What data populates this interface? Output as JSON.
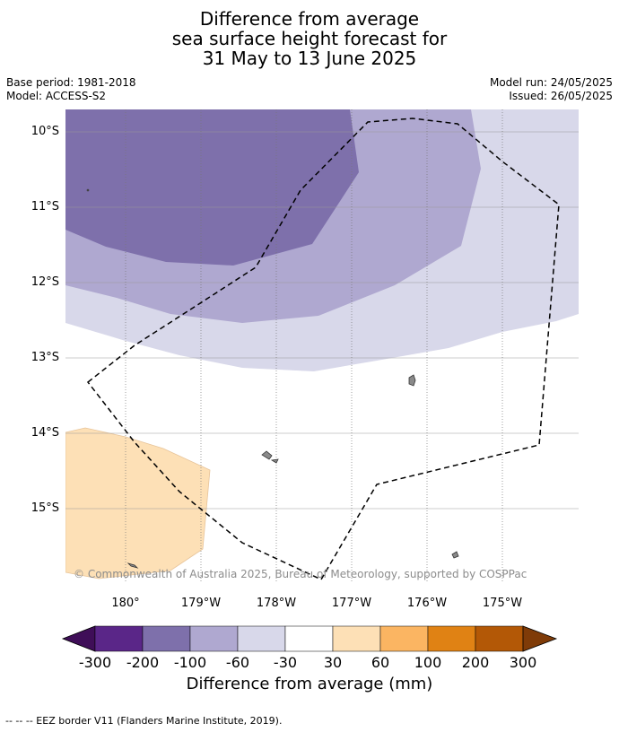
{
  "title": {
    "line1": "Difference from average",
    "line2": "sea surface height forecast for",
    "line3": "31 May to 13 June 2025"
  },
  "meta": {
    "base_period": "Base period: 1981-2018",
    "model": "Model: ACCESS-S2",
    "model_run": "Model run: 24/05/2025",
    "issued": "Issued: 26/05/2025"
  },
  "map": {
    "lat_labels": [
      "10°S",
      "11°S",
      "12°S",
      "13°S",
      "14°S",
      "15°S"
    ],
    "lon_labels": [
      "180°",
      "179°W",
      "178°W",
      "177°W",
      "176°W",
      "175°W"
    ],
    "copyright": "© Commonwealth of Australia 2025, Bureau of Meteorology, supported by COSPPac"
  },
  "colorbar": {
    "labels": [
      "-300",
      "-200",
      "-100",
      "-60",
      "-30",
      "30",
      "60",
      "100",
      "200",
      "300"
    ],
    "colors": [
      "#3f0e58",
      "#5a2688",
      "#7e70ab",
      "#afa8d0",
      "#d8d8ea",
      "#ffffff",
      "#fde0b6",
      "#fbb562",
      "#e08214",
      "#b35806",
      "#7f3b08"
    ],
    "title": "Difference from average (mm)"
  },
  "footer": {
    "legend": "--  --  -- EEZ border V11 (Flanders Marine Institute, 2019)."
  }
}
